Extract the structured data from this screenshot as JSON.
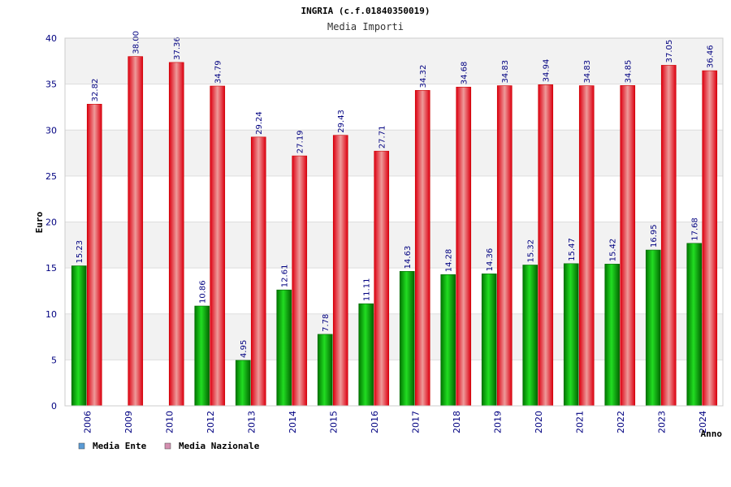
{
  "chart_data": {
    "type": "bar",
    "title": "INGRIA (c.f.01840350019)",
    "subtitle": "Media Importi",
    "xlabel": "Anno",
    "ylabel": "Euro",
    "ylim": [
      0,
      40
    ],
    "yticks": [
      "0",
      "5",
      "10",
      "15",
      "20",
      "25",
      "30",
      "35",
      "40"
    ],
    "categories": [
      "2006",
      "2009",
      "2010",
      "2012",
      "2013",
      "2014",
      "2015",
      "2016",
      "2017",
      "2018",
      "2019",
      "2020",
      "2021",
      "2022",
      "2023",
      "2024"
    ],
    "series": [
      {
        "name": "Media Ente",
        "color": "#00aa00",
        "legend_color": "#5b9bd5",
        "values": [
          15.23,
          null,
          null,
          10.86,
          4.95,
          12.61,
          7.78,
          11.11,
          14.63,
          14.28,
          14.36,
          15.32,
          15.47,
          15.42,
          16.95,
          17.68
        ],
        "labels": [
          "15.23",
          "",
          "",
          "10.86",
          "4.95",
          "12.61",
          "7.78",
          "11.11",
          "14.63",
          "14.28",
          "14.36",
          "15.32",
          "15.47",
          "15.42",
          "16.95",
          "17.68"
        ]
      },
      {
        "name": "Media Nazionale",
        "color": "#ee1111",
        "legend_color": "#d48fb0",
        "values": [
          32.82,
          38.0,
          37.36,
          34.79,
          29.24,
          27.19,
          29.43,
          27.71,
          34.32,
          34.68,
          34.83,
          34.94,
          34.83,
          34.85,
          37.05,
          36.46
        ],
        "labels": [
          "32.82",
          "38.00",
          "37.36",
          "34.79",
          "29.24",
          "27.19",
          "29.43",
          "27.71",
          "34.32",
          "34.68",
          "34.83",
          "34.94",
          "34.83",
          "34.85",
          "37.05",
          "36.46"
        ]
      }
    ],
    "legend": "bottom-left",
    "grid": true
  }
}
